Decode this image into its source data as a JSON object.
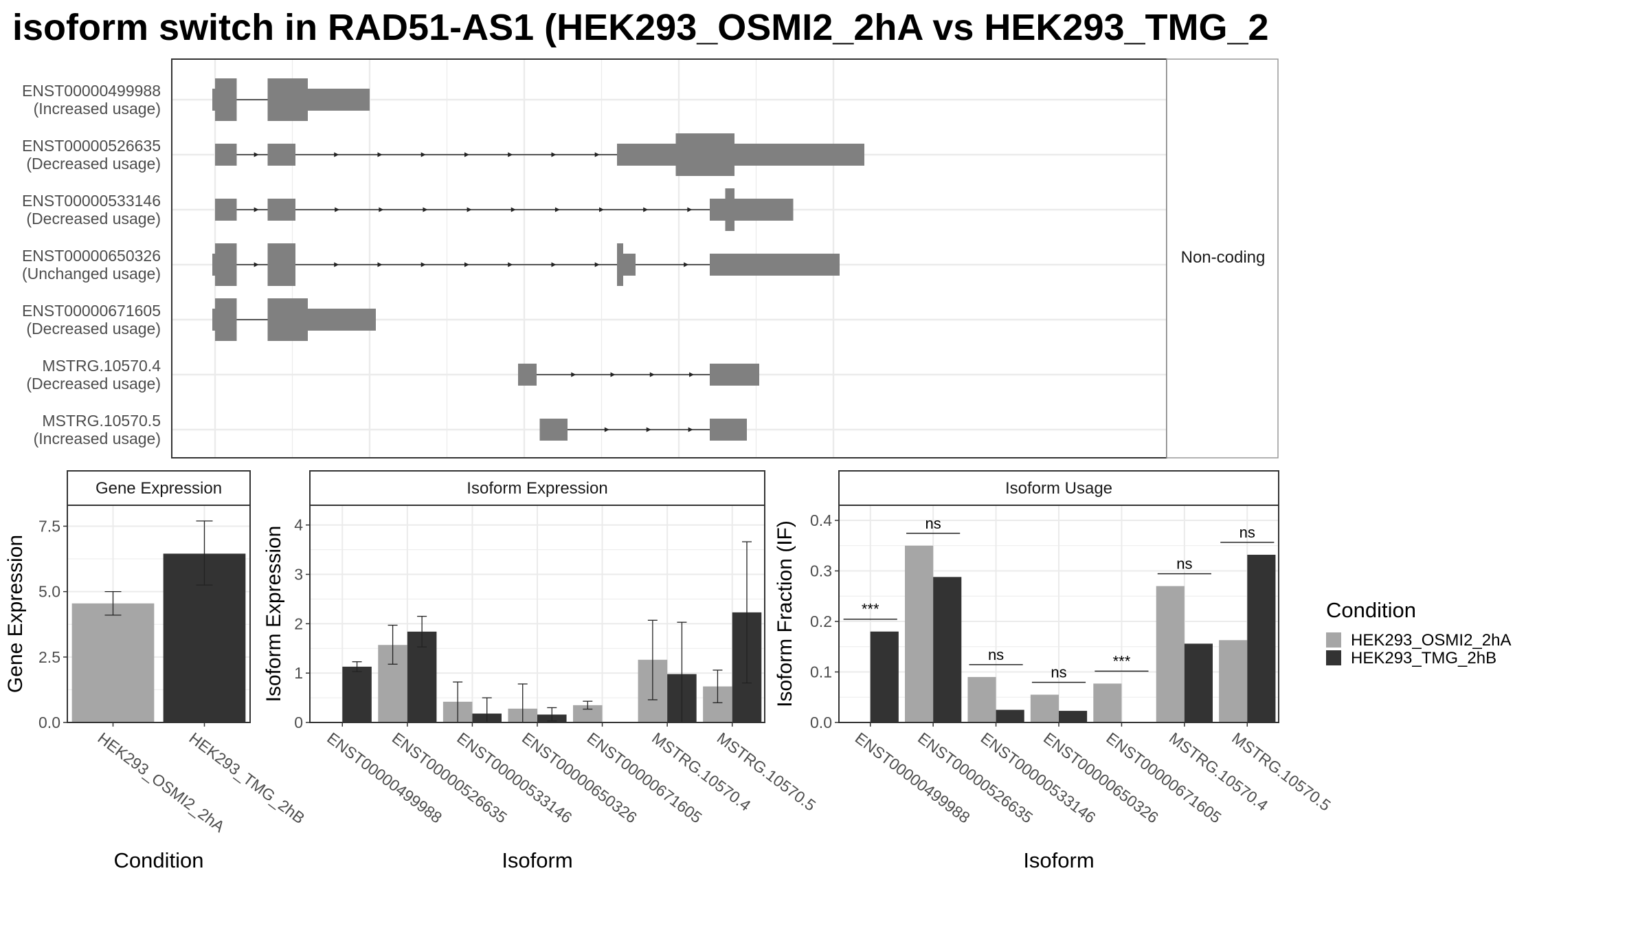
{
  "title": "isoform switch in RAD51-AS1 (HEK293_OSMI2_2hA vs HEK293_TMG_2",
  "colors": {
    "condition_a": "#a6a6a6",
    "condition_b": "#333333",
    "transcript_feature": "#808080",
    "panel_border": "#333333",
    "strip_border": "#999999",
    "grid": "#ebebeb",
    "text": "#4d4d4d"
  },
  "legend": {
    "title": "Condition",
    "items": [
      "HEK293_OSMI2_2hA",
      "HEK293_TMG_2hB"
    ]
  },
  "chart_data": [
    {
      "type": "transcript-structure",
      "facet_label": "Non-coding",
      "grid": true,
      "transcripts": [
        {
          "name": "ENST00000499988",
          "usage": "(Increased usage)",
          "exons": [
            [
              0.0,
              0.7
            ],
            [
              1.7,
              3.0
            ],
            [
              3.0,
              5.0
            ]
          ],
          "thick": [
            [
              0.0,
              0.7
            ],
            [
              1.7,
              3.0
            ]
          ],
          "tss_hook": true,
          "arrows": false
        },
        {
          "name": "ENST00000526635",
          "usage": "(Decreased usage)",
          "exons": [
            [
              0.0,
              0.7
            ],
            [
              1.7,
              2.6
            ],
            [
              13.0,
              21.0
            ]
          ],
          "thick": [
            [
              14.9,
              16.8
            ]
          ],
          "tss_hook": false,
          "arrows": true
        },
        {
          "name": "ENST00000533146",
          "usage": "(Decreased usage)",
          "exons": [
            [
              0.0,
              0.7
            ],
            [
              1.7,
              2.6
            ],
            [
              16.0,
              18.7
            ]
          ],
          "thick": [
            [
              16.5,
              16.8
            ]
          ],
          "tss_hook": false,
          "arrows": true
        },
        {
          "name": "ENST00000650326",
          "usage": "(Unchanged usage)",
          "exons": [
            [
              0.0,
              0.7
            ],
            [
              1.7,
              2.6
            ],
            [
              13.0,
              13.6
            ],
            [
              16.0,
              20.2
            ]
          ],
          "thick": [
            [
              0.0,
              0.7
            ],
            [
              1.7,
              2.6
            ],
            [
              13.0,
              13.2
            ]
          ],
          "tss_hook": true,
          "arrows": true
        },
        {
          "name": "ENST00000671605",
          "usage": "(Decreased usage)",
          "exons": [
            [
              0.0,
              0.7
            ],
            [
              1.7,
              3.0
            ],
            [
              3.0,
              5.2
            ]
          ],
          "thick": [
            [
              0.0,
              0.7
            ],
            [
              1.7,
              3.0
            ]
          ],
          "tss_hook": true,
          "arrows": false
        },
        {
          "name": "MSTRG.10570.4",
          "usage": "(Decreased usage)",
          "exons": [
            [
              9.8,
              10.4
            ],
            [
              16.0,
              17.6
            ]
          ],
          "thick": [],
          "tss_hook": false,
          "arrows": true
        },
        {
          "name": "MSTRG.10570.5",
          "usage": "(Increased usage)",
          "exons": [
            [
              10.5,
              11.4
            ],
            [
              16.0,
              17.2
            ]
          ],
          "thick": [],
          "tss_hook": false,
          "arrows": true
        }
      ]
    },
    {
      "type": "bar",
      "title": "Gene Expression",
      "xlabel": "Condition",
      "ylabel": "Gene Expression",
      "ylim": [
        0,
        8.3
      ],
      "yticks": [
        0.0,
        2.5,
        5.0,
        7.5
      ],
      "ytick_labels": [
        "0.0",
        "2.5",
        "5.0",
        "7.5"
      ],
      "categories": [
        "HEK293_OSMI2_2hA",
        "HEK293_TMG_2hB"
      ],
      "values": [
        4.55,
        6.45
      ],
      "errors": [
        [
          4.1,
          5.0
        ],
        [
          5.25,
          7.7
        ]
      ],
      "grid": true
    },
    {
      "type": "bar",
      "title": "Isoform Expression",
      "xlabel": "Isoform",
      "ylabel": "Isoform Expression",
      "ylim": [
        0,
        4.4
      ],
      "yticks": [
        0,
        1,
        2,
        3,
        4
      ],
      "ytick_labels": [
        "0",
        "1",
        "2",
        "3",
        "4"
      ],
      "categories": [
        "ENST00000499988",
        "ENST00000526635",
        "ENST00000533146",
        "ENST00000650326",
        "ENST00000671605",
        "MSTRG.10570.4",
        "MSTRG.10570.5"
      ],
      "series": [
        {
          "name": "HEK293_OSMI2_2hA",
          "values": [
            0.0,
            1.57,
            0.42,
            0.28,
            0.35,
            1.27,
            0.73
          ],
          "errors": [
            [
              0.0,
              0.0
            ],
            [
              1.18,
              1.97
            ],
            [
              0.0,
              0.82
            ],
            [
              0.0,
              0.78
            ],
            [
              0.27,
              0.43
            ],
            [
              0.46,
              2.07
            ],
            [
              0.4,
              1.06
            ]
          ]
        },
        {
          "name": "HEK293_TMG_2hB",
          "values": [
            1.13,
            1.84,
            0.18,
            0.16,
            0.0,
            0.98,
            2.23
          ],
          "errors": [
            [
              1.03,
              1.23
            ],
            [
              1.53,
              2.15
            ],
            [
              0.0,
              0.5
            ],
            [
              0.03,
              0.3
            ],
            [
              0.0,
              0.0
            ],
            [
              0.0,
              2.03
            ],
            [
              0.8,
              3.66
            ]
          ]
        }
      ],
      "grid": true
    },
    {
      "type": "bar",
      "title": "Isoform Usage",
      "xlabel": "Isoform",
      "ylabel": "Isoform Fraction (IF)",
      "ylim": [
        0,
        0.43
      ],
      "yticks": [
        0.0,
        0.1,
        0.2,
        0.3,
        0.4
      ],
      "ytick_labels": [
        "0.0",
        "0.1",
        "0.2",
        "0.3",
        "0.4"
      ],
      "categories": [
        "ENST00000499988",
        "ENST00000526635",
        "ENST00000533146",
        "ENST00000650326",
        "ENST00000671605",
        "MSTRG.10570.4",
        "MSTRG.10570.5"
      ],
      "series": [
        {
          "name": "HEK293_OSMI2_2hA",
          "values": [
            0.0,
            0.35,
            0.09,
            0.055,
            0.077,
            0.27,
            0.163
          ]
        },
        {
          "name": "HEK293_TMG_2hB",
          "values": [
            0.18,
            0.288,
            0.025,
            0.023,
            0.0,
            0.156,
            0.332
          ]
        }
      ],
      "significance": [
        "***",
        "ns",
        "ns",
        "ns",
        "***",
        "ns",
        "ns"
      ],
      "grid": true
    }
  ]
}
